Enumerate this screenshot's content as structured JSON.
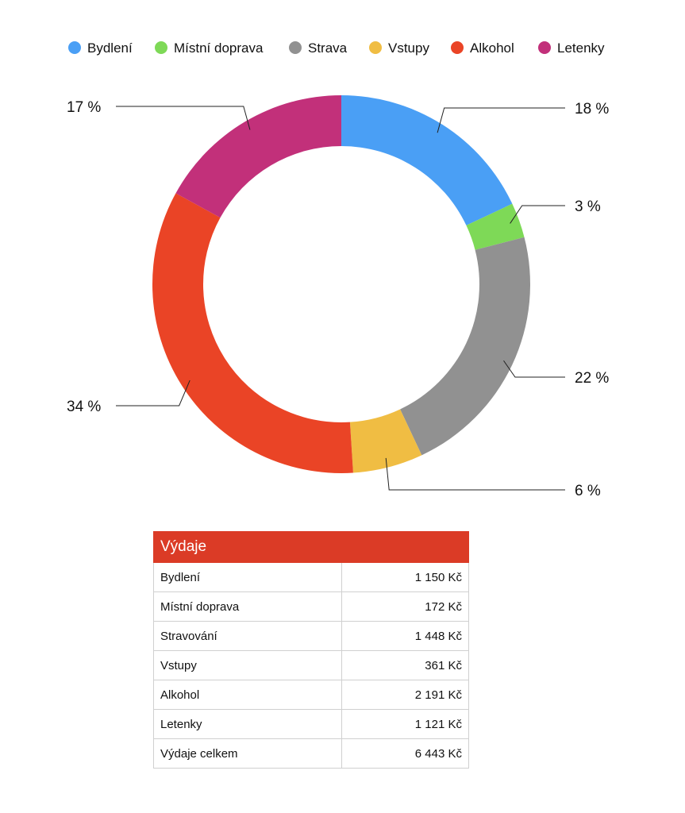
{
  "chart_data": {
    "type": "pie",
    "legend_placement": "top",
    "categories": [
      "Bydlení",
      "Místní doprava",
      "Strava",
      "Vstupy",
      "Alkohol",
      "Letenky"
    ],
    "values": [
      18,
      3,
      22,
      6,
      34,
      17
    ],
    "labels": [
      "18 %",
      "3 %",
      "22 %",
      "6 %",
      "34 %",
      "17 %"
    ],
    "colors": [
      "#4a9ff5",
      "#7ed957",
      "#919191",
      "#f0bd43",
      "#ea4426",
      "#c2307a"
    ]
  },
  "table": {
    "title": "Výdaje",
    "rows": [
      {
        "name": "Bydlení",
        "value": "1 150 Kč"
      },
      {
        "name": "Místní doprava",
        "value": "172 Kč"
      },
      {
        "name": "Stravování",
        "value": "1 448 Kč"
      },
      {
        "name": "Vstupy",
        "value": "361 Kč"
      },
      {
        "name": "Alkohol",
        "value": "2 191 Kč"
      },
      {
        "name": "Letenky",
        "value": "1 121 Kč"
      },
      {
        "name": "Výdaje celkem",
        "value": "6 443 Kč"
      }
    ]
  }
}
